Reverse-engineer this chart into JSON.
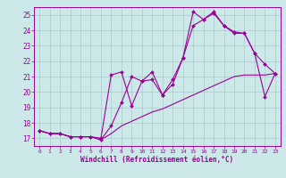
{
  "bg_color": "#cce8e8",
  "line_color": "#990099",
  "grid_color": "#aacccc",
  "xlabel": "Windchill (Refroidissement éolien,°C)",
  "xlim": [
    -0.5,
    23.5
  ],
  "ylim": [
    16.5,
    25.5
  ],
  "yticks": [
    17,
    18,
    19,
    20,
    21,
    22,
    23,
    24,
    25
  ],
  "xticks": [
    0,
    1,
    2,
    3,
    4,
    5,
    6,
    7,
    8,
    9,
    10,
    11,
    12,
    13,
    14,
    15,
    16,
    17,
    18,
    19,
    20,
    21,
    22,
    23
  ],
  "line1_x": [
    0,
    1,
    2,
    3,
    4,
    5,
    6,
    7,
    8,
    9,
    10,
    11,
    12,
    13,
    14,
    15,
    16,
    17,
    18,
    19,
    20,
    21,
    22,
    23
  ],
  "line1_y": [
    17.5,
    17.3,
    17.3,
    17.1,
    17.1,
    17.1,
    17.0,
    21.1,
    21.3,
    19.1,
    20.7,
    20.8,
    19.8,
    20.8,
    22.2,
    25.2,
    24.7,
    25.2,
    24.3,
    23.9,
    23.8,
    22.5,
    19.7,
    21.2
  ],
  "line2_x": [
    0,
    1,
    2,
    3,
    4,
    5,
    6,
    7,
    8,
    9,
    10,
    11,
    12,
    13,
    14,
    15,
    16,
    17,
    18,
    19,
    20,
    21,
    22,
    23
  ],
  "line2_y": [
    17.5,
    17.3,
    17.3,
    17.1,
    17.1,
    17.1,
    16.9,
    17.8,
    19.3,
    21.0,
    20.7,
    21.3,
    19.8,
    20.5,
    22.2,
    24.3,
    24.7,
    25.1,
    24.3,
    23.8,
    23.8,
    22.5,
    21.8,
    21.2
  ],
  "line3_x": [
    0,
    1,
    2,
    3,
    4,
    5,
    6,
    7,
    8,
    9,
    10,
    11,
    12,
    13,
    14,
    15,
    16,
    17,
    18,
    19,
    20,
    21,
    22,
    23
  ],
  "line3_y": [
    17.5,
    17.3,
    17.3,
    17.1,
    17.1,
    17.1,
    16.9,
    17.3,
    17.8,
    18.1,
    18.4,
    18.7,
    18.9,
    19.2,
    19.5,
    19.8,
    20.1,
    20.4,
    20.7,
    21.0,
    21.1,
    21.1,
    21.1,
    21.2
  ]
}
